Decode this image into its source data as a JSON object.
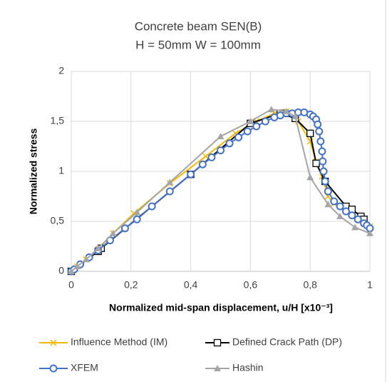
{
  "chart_data": {
    "type": "line",
    "title": [
      "Concrete beam SEN(B)",
      "H = 50mm W = 100mm"
    ],
    "xlabel": "Normalized mid-span displacement, u/H [x10⁻³]",
    "ylabel": "Normalized stress",
    "xlim": [
      0,
      1
    ],
    "ylim": [
      0,
      2
    ],
    "xticks": [
      0,
      {
        "value": 0.2,
        "label": "0,2"
      },
      {
        "value": 0.4,
        "label": "0,4"
      },
      {
        "value": 0.6,
        "label": "0,6"
      },
      {
        "value": 0.8,
        "label": "0,8"
      },
      1
    ],
    "yticks": [
      0,
      {
        "value": 0.5,
        "label": "0,5"
      },
      1,
      {
        "value": 1.5,
        "label": "1,5"
      },
      2
    ],
    "grid": true,
    "legend": "bottom",
    "series": [
      {
        "name": "Influence Method (IM)",
        "color": "#f5b800",
        "marker": "x",
        "x": [
          0,
          0.02,
          0.05,
          0.09,
          0.14,
          0.21,
          0.33,
          0.45,
          0.55,
          0.62,
          0.68,
          0.72,
          0.76,
          0.8,
          0.82,
          0.84,
          0.86,
          0.88,
          0.92,
          0.96,
          1.0
        ],
        "values": [
          0,
          0.05,
          0.12,
          0.22,
          0.38,
          0.58,
          0.88,
          1.15,
          1.38,
          1.5,
          1.58,
          1.6,
          1.5,
          1.3,
          1.1,
          0.95,
          0.75,
          0.68,
          0.6,
          0.52,
          0.45
        ]
      },
      {
        "name": "Defined Crack Path (DP)",
        "color": "#000000",
        "marker": "square",
        "x": [
          0,
          0.09,
          0.1,
          0.4,
          0.6,
          0.7,
          0.75,
          0.8,
          0.82,
          0.85,
          0.92,
          0.94,
          0.97,
          0.98
        ],
        "values": [
          0,
          0.2,
          0.23,
          0.97,
          1.48,
          1.58,
          1.53,
          1.38,
          1.08,
          0.9,
          0.65,
          0.62,
          0.55,
          0.52
        ]
      },
      {
        "name": "XFEM",
        "color": "#4472c4",
        "marker": "circle",
        "x": [
          0,
          0.01,
          0.03,
          0.06,
          0.09,
          0.13,
          0.18,
          0.22,
          0.27,
          0.33,
          0.4,
          0.44,
          0.47,
          0.5,
          0.53,
          0.56,
          0.59,
          0.62,
          0.65,
          0.68,
          0.7,
          0.72,
          0.74,
          0.76,
          0.78,
          0.8,
          0.81,
          0.82,
          0.825,
          0.83,
          0.835,
          0.84,
          0.842,
          0.845,
          0.85,
          0.86,
          0.88,
          0.9,
          0.92,
          0.94,
          0.96,
          0.98,
          0.99,
          1.0
        ],
        "values": [
          0,
          0.02,
          0.07,
          0.14,
          0.21,
          0.31,
          0.43,
          0.52,
          0.65,
          0.8,
          0.97,
          1.07,
          1.14,
          1.21,
          1.28,
          1.34,
          1.4,
          1.45,
          1.5,
          1.54,
          1.56,
          1.58,
          1.58,
          1.59,
          1.59,
          1.57,
          1.55,
          1.52,
          1.47,
          1.4,
          1.3,
          1.2,
          1.1,
          1.0,
          0.9,
          0.8,
          0.7,
          0.65,
          0.6,
          0.56,
          0.52,
          0.48,
          0.46,
          0.43
        ]
      },
      {
        "name": "Hashin",
        "color": "#a5a5a5",
        "marker": "triangle",
        "x": [
          0,
          0.02,
          0.05,
          0.09,
          0.14,
          0.22,
          0.33,
          0.5,
          0.6,
          0.67,
          0.72,
          0.75,
          0.8,
          0.86,
          0.9,
          0.95,
          1.0
        ],
        "values": [
          0,
          0.05,
          0.12,
          0.23,
          0.38,
          0.59,
          0.89,
          1.35,
          1.5,
          1.62,
          1.6,
          1.55,
          0.94,
          0.67,
          0.55,
          0.44,
          0.38
        ]
      }
    ]
  }
}
